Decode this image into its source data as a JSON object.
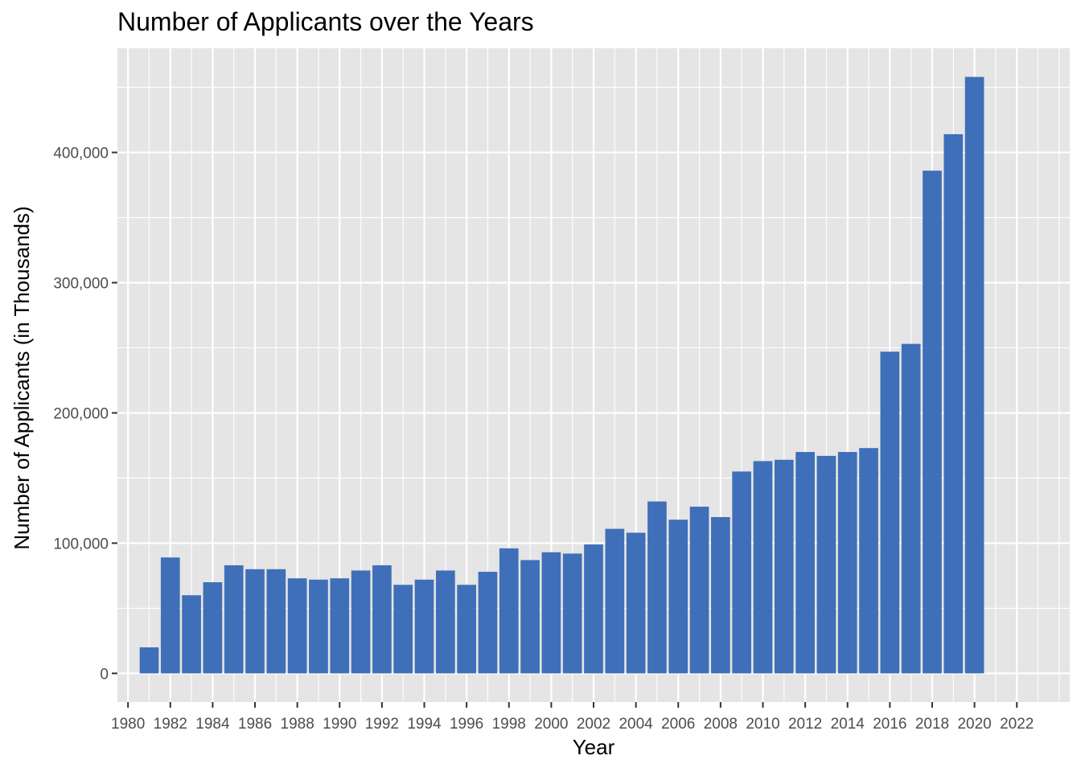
{
  "chart_data": {
    "type": "bar",
    "title": "Number of Applicants over the Years",
    "xlabel": "Year",
    "ylabel": "Number of Applicants (in Thousands)",
    "x": [
      1981,
      1982,
      1983,
      1984,
      1985,
      1986,
      1987,
      1988,
      1989,
      1990,
      1991,
      1992,
      1993,
      1994,
      1995,
      1996,
      1997,
      1998,
      1999,
      2000,
      2001,
      2002,
      2003,
      2004,
      2005,
      2006,
      2007,
      2008,
      2009,
      2010,
      2011,
      2012,
      2013,
      2014,
      2015,
      2016,
      2017,
      2018,
      2019,
      2020
    ],
    "values": [
      20000,
      89000,
      60000,
      70000,
      83000,
      80000,
      80000,
      73000,
      72000,
      73000,
      79000,
      83000,
      68000,
      72000,
      79000,
      68000,
      78000,
      96000,
      87000,
      93000,
      92000,
      99000,
      111000,
      108000,
      132000,
      118000,
      128000,
      120000,
      155000,
      163000,
      164000,
      170000,
      167000,
      170000,
      173000,
      247000,
      253000,
      386000,
      414000,
      458000
    ],
    "x_ticks": [
      "1980",
      "1982",
      "1984",
      "1986",
      "1988",
      "1990",
      "1992",
      "1994",
      "1996",
      "1998",
      "2000",
      "2002",
      "2004",
      "2006",
      "2008",
      "2010",
      "2012",
      "2014",
      "2016",
      "2018",
      "2020",
      "2022"
    ],
    "y_ticks": [
      "0",
      "100,000",
      "200,000",
      "300,000",
      "400,000"
    ],
    "xlim": [
      1979.5,
      2024.5
    ],
    "ylim": [
      -22000,
      480000
    ],
    "grid": true,
    "legend": "none",
    "bar_color": "#3f6fb8",
    "panel_color": "#e5e5e5",
    "grid_color": "#ffffff"
  }
}
